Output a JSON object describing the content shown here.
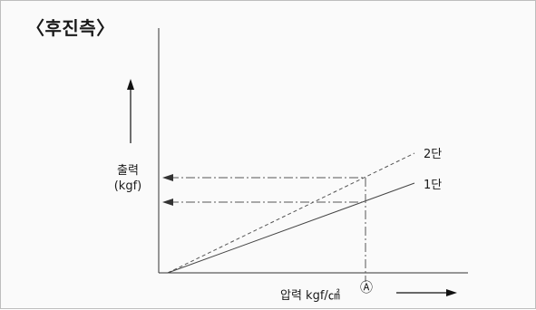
{
  "title": "〈후진측〉",
  "y_axis": {
    "line1": "출력",
    "line2": "(kgf)"
  },
  "x_axis": {
    "label": "압력 kgf/㎠",
    "marker": "Ⓐ"
  },
  "series": [
    {
      "label": "2단",
      "style": "dashed"
    },
    {
      "label": "1단",
      "style": "solid"
    }
  ]
}
